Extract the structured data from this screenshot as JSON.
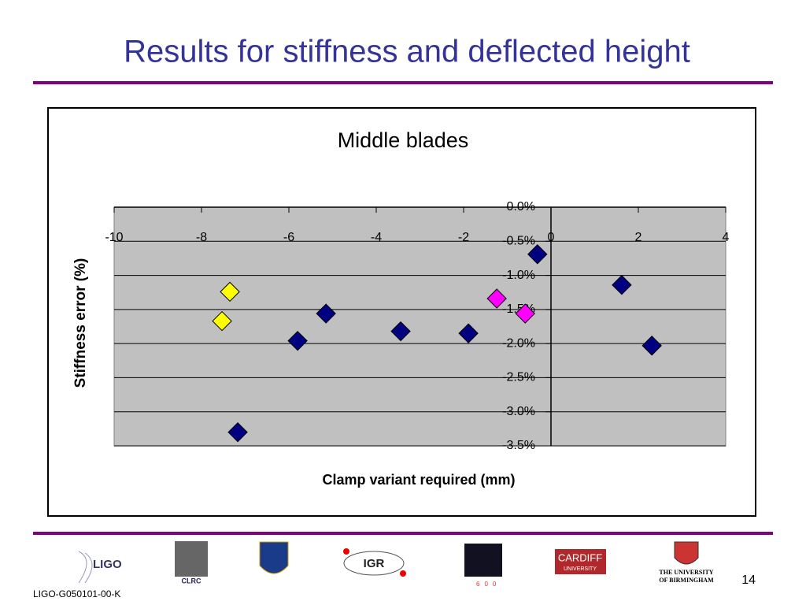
{
  "slide": {
    "title": "Results for stiffness and deflected height",
    "footer": "LIGO-G050101-00-K",
    "page_number": "14",
    "logos": [
      "LIGO",
      "CLRC",
      "IGR",
      "600",
      "CARDIFF",
      "UNIVERSITY",
      "THE UNIVERSITY",
      "OF BIRMINGHAM"
    ]
  },
  "chart_data": {
    "type": "scatter",
    "title": "Middle blades",
    "x_label": "Clamp variant required (mm)",
    "y_label": "Stiffness error (%)",
    "xlim": [
      -10,
      4
    ],
    "xticks": [
      -10,
      -8,
      -6,
      -4,
      -2,
      0,
      2,
      4
    ],
    "ylim": [
      -3.5,
      0
    ],
    "yticks": [
      {
        "value": 0,
        "label": "0.0%"
      },
      {
        "value": -0.5,
        "label": "-0.5%"
      },
      {
        "value": -1,
        "label": "-1.0%"
      },
      {
        "value": -1.5,
        "label": "-1.5%"
      },
      {
        "value": -2,
        "label": "-2.0%"
      },
      {
        "value": -2.5,
        "label": "-2.5%"
      },
      {
        "value": -3,
        "label": "-3.0%"
      },
      {
        "value": -3.5,
        "label": "-3.5%"
      }
    ],
    "grid": true,
    "marker": "diamond",
    "series": [
      {
        "color": "#000080",
        "x": [
          -0.31,
          1.62,
          -5.15,
          -5.8,
          -3.44,
          -1.89,
          2.31,
          -7.17
        ],
        "values": [
          -0.69,
          -1.14,
          -1.56,
          -1.96,
          -1.82,
          -1.85,
          -2.03,
          -3.3
        ]
      },
      {
        "color": "#ffff00",
        "x": [
          -7.35,
          -7.53
        ],
        "values": [
          -1.24,
          -1.67
        ]
      },
      {
        "color": "#ff00ff",
        "x": [
          -1.24,
          -0.59
        ],
        "values": [
          -1.34,
          -1.56
        ]
      }
    ]
  }
}
